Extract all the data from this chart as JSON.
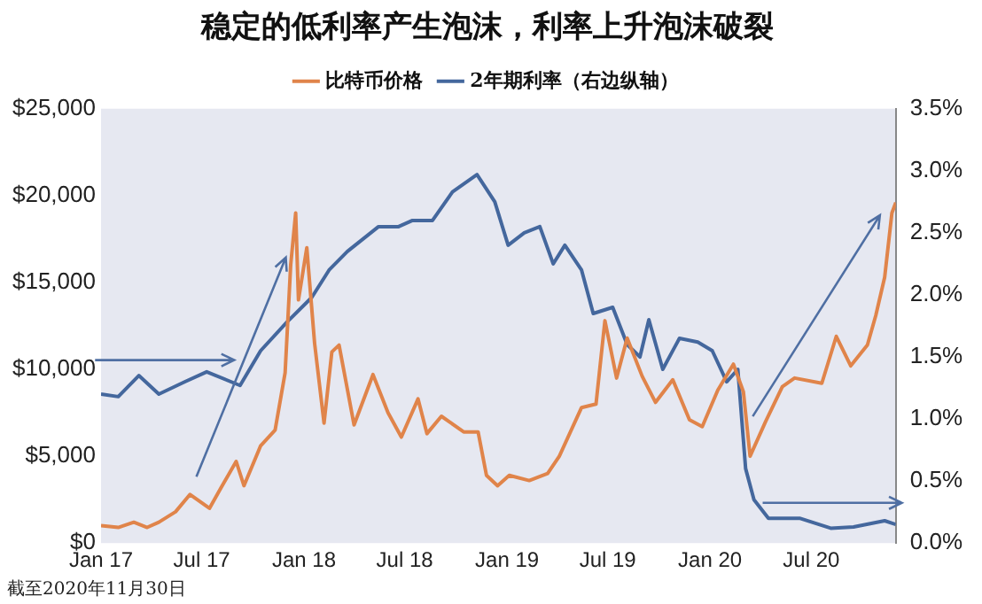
{
  "chart_data": {
    "type": "line",
    "title": "稳定的低利率产生泡沫，利率上升泡沫破裂",
    "annotations": [
      "截至2020年11月30日"
    ],
    "xlim": [
      "2017-01-01",
      "2020-11-30"
    ],
    "xticks": [
      {
        "value": "2017-01-01",
        "label": "Jan 17"
      },
      {
        "value": "2017-07-01",
        "label": "Jul 17"
      },
      {
        "value": "2018-01-01",
        "label": "Jan 18"
      },
      {
        "value": "2018-07-01",
        "label": "Jul 18"
      },
      {
        "value": "2019-01-01",
        "label": "Jan 19"
      },
      {
        "value": "2019-07-01",
        "label": "Jul 19"
      },
      {
        "value": "2020-01-01",
        "label": "Jan 20"
      },
      {
        "value": "2020-07-01",
        "label": "Jul 20"
      }
    ],
    "ylim": [
      0,
      25000
    ],
    "yticks": [
      {
        "value": 0,
        "label": "$0"
      },
      {
        "value": 5000,
        "label": "$5,000"
      },
      {
        "value": 10000,
        "label": "$10,000"
      },
      {
        "value": 15000,
        "label": "$15,000"
      },
      {
        "value": 20000,
        "label": "$20,000"
      },
      {
        "value": 25000,
        "label": "$25,000"
      }
    ],
    "y2lim": [
      0,
      3.5
    ],
    "y2ticks": [
      {
        "value": 0,
        "label": "0.0%"
      },
      {
        "value": 0.5,
        "label": "0.5%"
      },
      {
        "value": 1,
        "label": "1.0%"
      },
      {
        "value": 1.5,
        "label": "1.5%"
      },
      {
        "value": 2,
        "label": "2.0%"
      },
      {
        "value": 2.5,
        "label": "2.5%"
      },
      {
        "value": 3,
        "label": "3.0%"
      },
      {
        "value": 3.5,
        "label": "3.5%"
      }
    ],
    "grid": false,
    "legend": "top",
    "marker": "none",
    "line_style": "solid",
    "series": [
      {
        "name": "比特币价格",
        "color": "#e0844a",
        "x": [
          "2017-01-01",
          "2017-02-01",
          "2017-03-01",
          "2017-03-25",
          "2017-04-15",
          "2017-05-15",
          "2017-06-10",
          "2017-07-15",
          "2017-08-05",
          "2017-09-01",
          "2017-09-15",
          "2017-10-15",
          "2017-11-10",
          "2017-11-28",
          "2017-12-08",
          "2017-12-17",
          "2017-12-22",
          "2018-01-06",
          "2018-01-20",
          "2018-02-06",
          "2018-02-20",
          "2018-03-05",
          "2018-04-01",
          "2018-05-05",
          "2018-06-01",
          "2018-06-25",
          "2018-07-25",
          "2018-08-10",
          "2018-09-05",
          "2018-10-15",
          "2018-11-10",
          "2018-11-25",
          "2018-12-15",
          "2019-01-05",
          "2019-02-10",
          "2019-03-15",
          "2019-04-05",
          "2019-05-15",
          "2019-06-10",
          "2019-06-26",
          "2019-07-17",
          "2019-08-05",
          "2019-09-01",
          "2019-09-25",
          "2019-10-26",
          "2019-11-25",
          "2019-12-18",
          "2020-01-15",
          "2020-02-12",
          "2020-03-01",
          "2020-03-13",
          "2020-04-10",
          "2020-05-10",
          "2020-06-01",
          "2020-07-20",
          "2020-08-15",
          "2020-09-10",
          "2020-10-10",
          "2020-10-25",
          "2020-11-10",
          "2020-11-23",
          "2020-11-30"
        ],
        "values": [
          1000,
          900,
          1200,
          900,
          1200,
          1800,
          2800,
          2000,
          3200,
          4700,
          3300,
          5600,
          6500,
          9800,
          16000,
          19000,
          14000,
          17000,
          11500,
          6900,
          11000,
          11400,
          6800,
          9700,
          7500,
          6100,
          8300,
          6300,
          7300,
          6400,
          6400,
          3900,
          3300,
          3900,
          3600,
          4000,
          5000,
          7800,
          8000,
          12800,
          9500,
          11800,
          9600,
          8100,
          9400,
          7100,
          6700,
          8800,
          10300,
          8700,
          5000,
          7000,
          9000,
          9500,
          9200,
          11900,
          10200,
          11400,
          13100,
          15300,
          19000,
          19600
        ]
      },
      {
        "name": "2年期利率（右边纵轴）",
        "color": "#44679d",
        "axis": "y2",
        "x": [
          "2017-01-01",
          "2017-02-01",
          "2017-03-10",
          "2017-04-15",
          "2017-06-01",
          "2017-07-10",
          "2017-09-08",
          "2017-10-15",
          "2017-12-01",
          "2018-01-15",
          "2018-02-15",
          "2018-03-20",
          "2018-05-15",
          "2018-06-20",
          "2018-07-15",
          "2018-08-20",
          "2018-09-25",
          "2018-11-08",
          "2018-12-10",
          "2019-01-03",
          "2019-02-01",
          "2019-03-01",
          "2019-03-25",
          "2019-04-15",
          "2019-05-15",
          "2019-06-05",
          "2019-07-10",
          "2019-08-05",
          "2019-08-28",
          "2019-09-13",
          "2019-10-08",
          "2019-11-07",
          "2019-12-10",
          "2020-01-05",
          "2020-01-31",
          "2020-02-20",
          "2020-03-05",
          "2020-03-20",
          "2020-04-15",
          "2020-06-10",
          "2020-08-05",
          "2020-09-15",
          "2020-11-10",
          "2020-11-30"
        ],
        "values": [
          1.2,
          1.18,
          1.35,
          1.2,
          1.3,
          1.38,
          1.27,
          1.55,
          1.78,
          1.98,
          2.2,
          2.35,
          2.55,
          2.55,
          2.6,
          2.6,
          2.83,
          2.97,
          2.75,
          2.4,
          2.5,
          2.55,
          2.25,
          2.4,
          2.2,
          1.85,
          1.9,
          1.6,
          1.5,
          1.8,
          1.4,
          1.65,
          1.62,
          1.55,
          1.3,
          1.4,
          0.6,
          0.35,
          0.2,
          0.2,
          0.12,
          0.13,
          0.18,
          0.15
        ]
      }
    ]
  }
}
